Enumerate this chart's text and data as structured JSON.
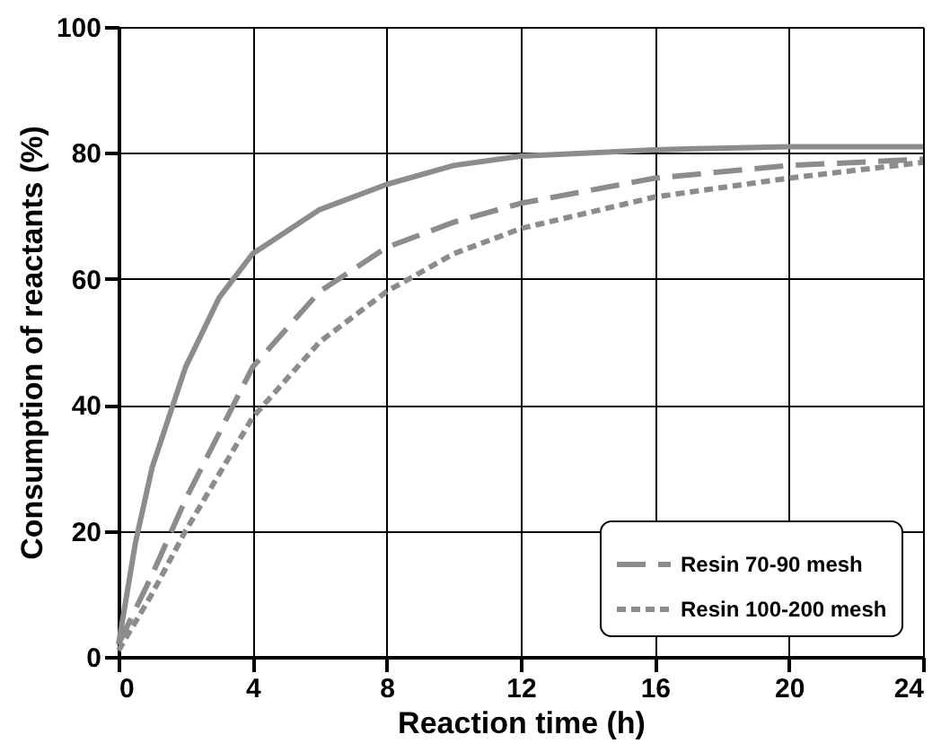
{
  "chart_data": {
    "type": "line",
    "xlabel": "Reaction time (h)",
    "ylabel": "Consumption of reactants (%)",
    "xlim": [
      0,
      24
    ],
    "xticks": [
      0,
      4,
      8,
      12,
      16,
      20,
      24
    ],
    "ylim": [
      0,
      100
    ],
    "yticks": [
      0,
      20,
      40,
      60,
      80,
      100
    ],
    "grid": true,
    "legend": "bottom right",
    "marker": "none",
    "series": [
      {
        "color": "#8c8c8c",
        "line_style": "solid",
        "x": [
          0,
          0.5,
          1,
          2,
          3,
          4,
          6,
          8,
          10,
          12,
          16,
          20,
          24
        ],
        "values": [
          2,
          18,
          30,
          46,
          57,
          64,
          71,
          75,
          78,
          79.5,
          80.5,
          81,
          81
        ]
      },
      {
        "name": "Resin 70-90 mesh",
        "color": "#8c8c8c",
        "line_style": "dashed",
        "x": [
          0,
          1,
          2,
          4,
          6,
          8,
          10,
          12,
          16,
          20,
          24
        ],
        "values": [
          2,
          13,
          25,
          46,
          58,
          65,
          69,
          72,
          76,
          78,
          79
        ]
      },
      {
        "name": "Resin 100-200 mesh",
        "color": "#8c8c8c",
        "line_style": "dotted",
        "x": [
          0,
          1,
          2,
          4,
          6,
          8,
          10,
          12,
          16,
          20,
          24
        ],
        "values": [
          1,
          10,
          20,
          38,
          50,
          58,
          64,
          68,
          73,
          76,
          78.5
        ]
      }
    ]
  }
}
